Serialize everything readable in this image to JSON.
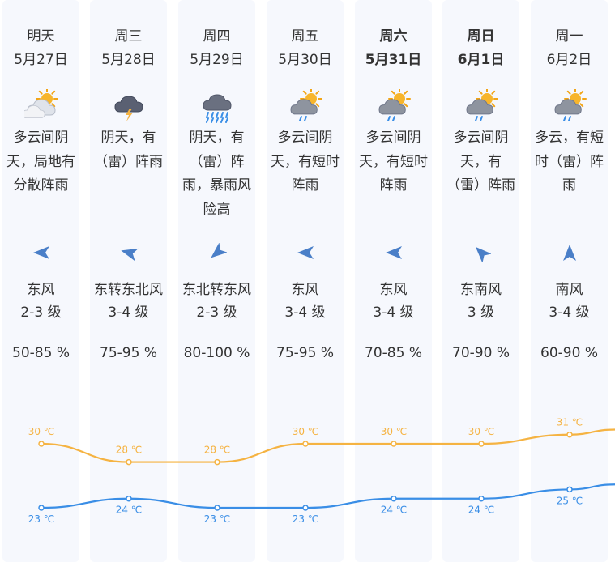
{
  "days": [
    {
      "day": "明天",
      "date": "5月27日",
      "bold": false,
      "icon": "cloudy-overcast-rain-icon",
      "desc": [
        "多云间阴",
        "天，局地有",
        "分散阵雨"
      ],
      "wind_dir_icon": "wind-arrow-east-icon",
      "wind_rotate": 180,
      "wind_dir": "东风",
      "wind_level": "2-3 级",
      "humidity": "50-85 %"
    },
    {
      "day": "周三",
      "date": "5月28日",
      "bold": false,
      "icon": "thunderstorm-icon",
      "desc": [
        "阴天，有",
        "（雷）阵雨"
      ],
      "wind_dir_icon": "wind-arrow-east-northeast-icon",
      "wind_rotate": 195,
      "wind_dir": "东转东北风",
      "wind_level": "3-4 级",
      "humidity": "75-95 %"
    },
    {
      "day": "周四",
      "date": "5月29日",
      "bold": false,
      "icon": "heavy-rain-icon",
      "desc": [
        "阴天，有",
        "（雷）阵",
        "雨，暴雨风",
        "险高"
      ],
      "wind_dir_icon": "wind-arrow-northeast-icon",
      "wind_rotate": 140,
      "wind_dir": "东北转东风",
      "wind_level": "2-3 级",
      "humidity": "80-100 %"
    },
    {
      "day": "周五",
      "date": "5月30日",
      "bold": false,
      "icon": "partly-cloudy-shower-icon",
      "desc": [
        "多云间阴",
        "天，有短时",
        "阵雨"
      ],
      "wind_dir_icon": "wind-arrow-east-icon",
      "wind_rotate": 180,
      "wind_dir": "东风",
      "wind_level": "3-4 级",
      "humidity": "75-95 %"
    },
    {
      "day": "周六",
      "date": "5月31日",
      "bold": true,
      "icon": "partly-cloudy-shower-icon",
      "desc": [
        "多云间阴",
        "天，有短时",
        "阵雨"
      ],
      "wind_dir_icon": "wind-arrow-east-icon",
      "wind_rotate": 180,
      "wind_dir": "东风",
      "wind_level": "3-4 级",
      "humidity": "70-85 %"
    },
    {
      "day": "周日",
      "date": "6月1日",
      "bold": true,
      "icon": "partly-cloudy-shower-icon",
      "desc": [
        "多云间阴",
        "天，有",
        "（雷）阵雨"
      ],
      "wind_dir_icon": "wind-arrow-southeast-icon",
      "wind_rotate": 225,
      "wind_dir": "东南风",
      "wind_level": "3 级",
      "humidity": "70-90 %"
    },
    {
      "day": "周一",
      "date": "6月2日",
      "bold": false,
      "icon": "partly-cloudy-shower-icon",
      "desc": [
        "多云，有短",
        "时（雷）阵",
        "雨"
      ],
      "wind_dir_icon": "wind-arrow-south-icon",
      "wind_rotate": 270,
      "wind_dir": "南风",
      "wind_level": "3-4 级",
      "humidity": "60-90 %"
    }
  ],
  "chart_data": {
    "type": "line",
    "categories": [
      "明天",
      "周三",
      "周四",
      "周五",
      "周六",
      "周日",
      "周一"
    ],
    "series": [
      {
        "values": [
          30,
          28,
          28,
          30,
          30,
          30,
          31
        ],
        "labels": [
          "30 ℃",
          "28 ℃",
          "28 ℃",
          "30 ℃",
          "30 ℃",
          "30 ℃",
          "31 ℃"
        ],
        "color": "#f5b342"
      },
      {
        "values": [
          23,
          24,
          23,
          23,
          24,
          24,
          25
        ],
        "labels": [
          "23 ℃",
          "24 ℃",
          "23 ℃",
          "23 ℃",
          "24 ℃",
          "24 ℃",
          "25 ℃"
        ],
        "color": "#3a8ee6"
      }
    ]
  },
  "colors": {
    "high": "#f5b342",
    "low": "#3a8ee6",
    "col_bg": "#f6f8fd",
    "wind_arrow": "#4a7fc8"
  }
}
